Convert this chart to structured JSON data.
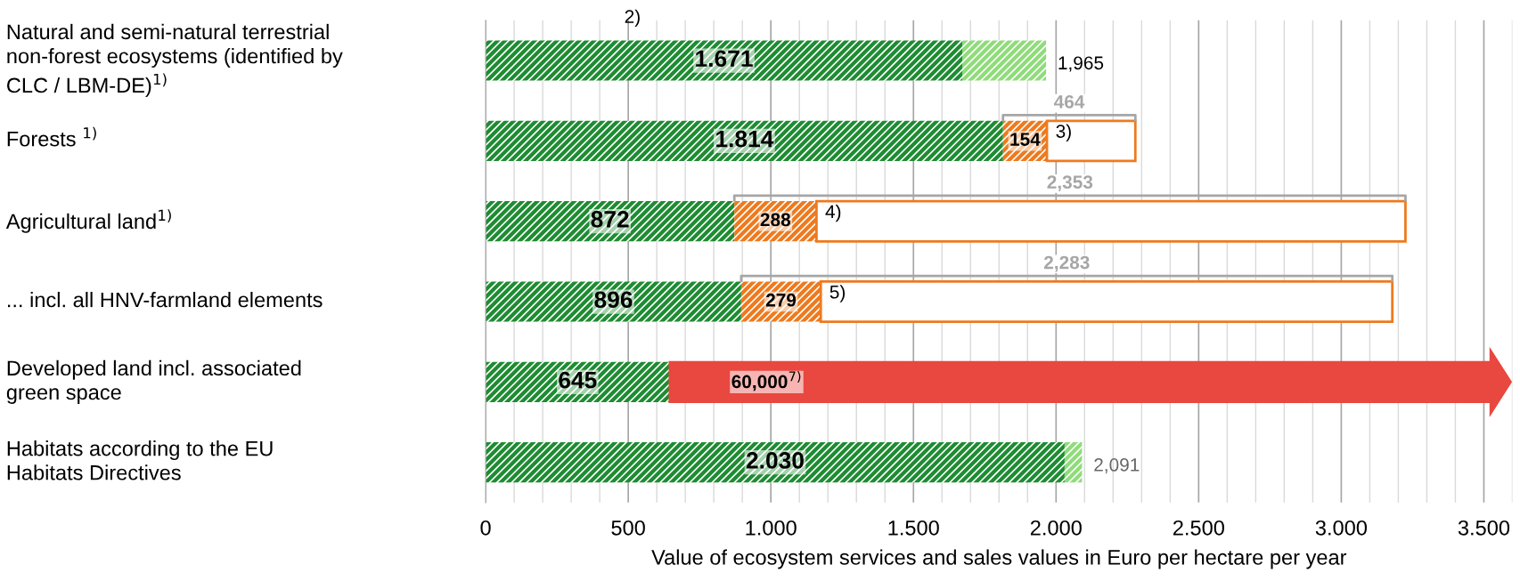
{
  "chart_data": {
    "type": "bar",
    "orientation": "horizontal",
    "stacked": true,
    "xlabel": "Value of ecosystem services and sales values in Euro per hectare per year",
    "categories": [
      "Natural and semi-natural terrestrial\nnon-forest ecosystems (identified by\nCLC / LBM-DE)$^{1)}$",
      "Forests $^{1)}$",
      "Agricultural land$^{1)}$",
      "... incl. all HNV-farmland elements",
      "Developed land incl. associated\ngreen space",
      "Habitats according to the EU\nHabitats Directives"
    ],
    "series": [
      {
        "color": "#1e8c32",
        "values": [
          1671,
          1814,
          872,
          896,
          645,
          2030
        ],
        "value_labels": [
          "1.671",
          "1.814",
          "872",
          "896",
          "645",
          "2.030"
        ]
      },
      {
        "color": "#8fdc7a",
        "values": [
          294,
          null,
          null,
          null,
          null,
          61
        ]
      },
      {
        "color": "#ee7a1e",
        "values": [
          null,
          154,
          288,
          279,
          null,
          null
        ],
        "value_labels": [
          null,
          "154",
          "288",
          "279",
          null,
          null
        ]
      },
      {
        "color": "#ffffff",
        "values": [
          null,
          310,
          2065,
          2004,
          null,
          null
        ]
      }
    ],
    "annotations": [
      "2)",
      "3)",
      "4)",
      "5)",
      "60,000$^{7)}$",
      "464",
      "2,353",
      "2,283",
      "1,965",
      "2,091"
    ],
    "xlim": [
      0,
      3600
    ],
    "xticks": [
      0,
      {
        "value": 100,
        "label": null
      },
      {
        "value": 200,
        "label": null
      },
      {
        "value": 300,
        "label": null
      },
      {
        "value": 400,
        "label": null
      },
      500,
      {
        "value": 600,
        "label": null
      },
      {
        "value": 700,
        "label": null
      },
      {
        "value": 800,
        "label": null
      },
      {
        "value": 900,
        "label": null
      },
      {
        "value": 1000,
        "label": "1.000"
      },
      {
        "value": 1100,
        "label": null
      },
      {
        "value": 1200,
        "label": null
      },
      {
        "value": 1300,
        "label": null
      },
      {
        "value": 1400,
        "label": null
      },
      {
        "value": 1500,
        "label": "1.500"
      },
      {
        "value": 1600,
        "label": null
      },
      {
        "value": 1700,
        "label": null
      },
      {
        "value": 1800,
        "label": null
      },
      {
        "value": 1900,
        "label": null
      },
      {
        "value": 2000,
        "label": "2.000"
      },
      {
        "value": 2100,
        "label": null
      },
      {
        "value": 2200,
        "label": null
      },
      {
        "value": 2300,
        "label": null
      },
      {
        "value": 2400,
        "label": null
      },
      {
        "value": 2500,
        "label": "2.500"
      },
      {
        "value": 2600,
        "label": null
      },
      {
        "value": 2700,
        "label": null
      },
      {
        "value": 2800,
        "label": null
      },
      {
        "value": 2900,
        "label": null
      },
      {
        "value": 3000,
        "label": "3.000"
      },
      {
        "value": 3100,
        "label": null
      },
      {
        "value": 3200,
        "label": null
      },
      {
        "value": 3300,
        "label": null
      },
      {
        "value": 3400,
        "label": null
      },
      {
        "value": 3500,
        "label": "3.500"
      },
      {
        "value": 3600,
        "label": null
      }
    ],
    "grid": "x",
    "legend": false
  }
}
